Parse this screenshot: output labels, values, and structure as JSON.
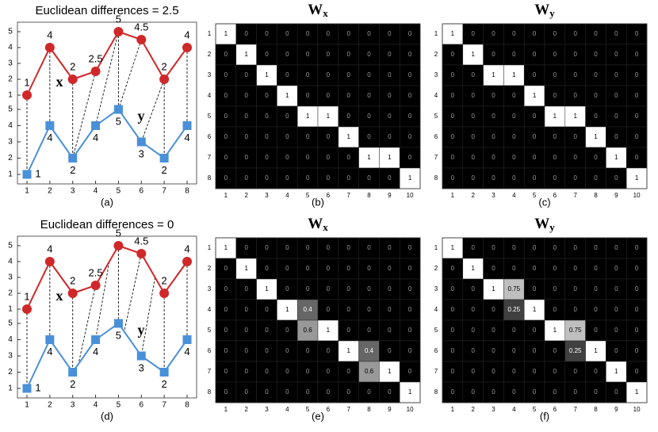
{
  "panels": [
    {
      "line": {
        "title": "Euclidean differences = 2.5",
        "caption": "(a)",
        "xticks": [
          1,
          2,
          3,
          4,
          5,
          6,
          7,
          8
        ],
        "yticks_top": [
          1,
          2,
          3,
          4,
          5
        ],
        "yticks_bottom": [
          1,
          2,
          3,
          4,
          5
        ],
        "series": [
          {
            "name": "x",
            "color": "#d0282a",
            "values": [
              1,
              4,
              2,
              2.5,
              5,
              4.5,
              2,
              4
            ]
          },
          {
            "name": "y",
            "color": "#4a90d9",
            "values": [
              1,
              4,
              2,
              4,
              5,
              3,
              2,
              4
            ]
          }
        ]
      },
      "matrices": [
        {
          "title": "W",
          "title_sub": "x",
          "caption": "(b)",
          "row_labels": [
            1,
            2,
            3,
            4,
            5,
            6,
            7,
            8
          ],
          "col_labels": [
            1,
            2,
            3,
            4,
            5,
            6,
            7,
            8,
            9,
            10
          ],
          "values": [
            [
              1,
              0,
              0,
              0,
              0,
              0,
              0,
              0,
              0,
              0
            ],
            [
              0,
              1,
              0,
              0,
              0,
              0,
              0,
              0,
              0,
              0
            ],
            [
              0,
              0,
              1,
              0,
              0,
              0,
              0,
              0,
              0,
              0
            ],
            [
              0,
              0,
              0,
              1,
              0,
              0,
              0,
              0,
              0,
              0
            ],
            [
              0,
              0,
              0,
              0,
              1,
              1,
              0,
              0,
              0,
              0
            ],
            [
              0,
              0,
              0,
              0,
              0,
              0,
              1,
              0,
              0,
              0
            ],
            [
              0,
              0,
              0,
              0,
              0,
              0,
              0,
              1,
              1,
              0
            ],
            [
              0,
              0,
              0,
              0,
              0,
              0,
              0,
              0,
              0,
              1
            ]
          ]
        },
        {
          "title": "W",
          "title_sub": "y",
          "caption": "(c)",
          "row_labels": [
            1,
            2,
            3,
            4,
            5,
            6,
            7,
            8
          ],
          "col_labels": [
            1,
            2,
            3,
            4,
            5,
            6,
            7,
            8,
            9,
            10
          ],
          "values": [
            [
              1,
              0,
              0,
              0,
              0,
              0,
              0,
              0,
              0,
              0
            ],
            [
              0,
              1,
              0,
              0,
              0,
              0,
              0,
              0,
              0,
              0
            ],
            [
              0,
              0,
              1,
              1,
              0,
              0,
              0,
              0,
              0,
              0
            ],
            [
              0,
              0,
              0,
              0,
              1,
              0,
              0,
              0,
              0,
              0
            ],
            [
              0,
              0,
              0,
              0,
              0,
              1,
              1,
              0,
              0,
              0
            ],
            [
              0,
              0,
              0,
              0,
              0,
              0,
              0,
              1,
              0,
              0
            ],
            [
              0,
              0,
              0,
              0,
              0,
              0,
              0,
              0,
              1,
              0
            ],
            [
              0,
              0,
              0,
              0,
              0,
              0,
              0,
              0,
              0,
              1
            ]
          ]
        }
      ]
    },
    {
      "line": {
        "title": "Euclidean differences = 0",
        "caption": "(d)",
        "xticks": [
          1,
          2,
          3,
          4,
          5,
          6,
          7,
          8
        ],
        "yticks_top": [
          1,
          2,
          3,
          4,
          5
        ],
        "yticks_bottom": [
          1,
          2,
          3,
          4,
          5
        ],
        "series": [
          {
            "name": "x",
            "color": "#d0282a",
            "values": [
              1,
              4,
              2,
              2.5,
              5,
              4.5,
              2,
              4
            ]
          },
          {
            "name": "y",
            "color": "#4a90d9",
            "values": [
              1,
              4,
              2,
              4,
              5,
              3,
              2,
              4
            ]
          }
        ]
      },
      "matrices": [
        {
          "title": "W",
          "title_sub": "x",
          "caption": "(e)",
          "row_labels": [
            1,
            2,
            3,
            4,
            5,
            6,
            7,
            8
          ],
          "col_labels": [
            1,
            2,
            3,
            4,
            5,
            6,
            7,
            8,
            9,
            10
          ],
          "values": [
            [
              1,
              0,
              0,
              0,
              0,
              0,
              0,
              0,
              0,
              0
            ],
            [
              0,
              1,
              0,
              0,
              0,
              0,
              0,
              0,
              0,
              0
            ],
            [
              0,
              0,
              1,
              0,
              0,
              0,
              0,
              0,
              0,
              0
            ],
            [
              0,
              0,
              0,
              1,
              0.4,
              0,
              0,
              0,
              0,
              0
            ],
            [
              0,
              0,
              0,
              0,
              0.6,
              1,
              0,
              0,
              0,
              0
            ],
            [
              0,
              0,
              0,
              0,
              0,
              0,
              1,
              0.4,
              0,
              0
            ],
            [
              0,
              0,
              0,
              0,
              0,
              0,
              0,
              0.6,
              1,
              0
            ],
            [
              0,
              0,
              0,
              0,
              0,
              0,
              0,
              0,
              0,
              1
            ]
          ]
        },
        {
          "title": "W",
          "title_sub": "y",
          "caption": "(f)",
          "row_labels": [
            1,
            2,
            3,
            4,
            5,
            6,
            7,
            8
          ],
          "col_labels": [
            1,
            2,
            3,
            4,
            5,
            6,
            7,
            8,
            9,
            10
          ],
          "values": [
            [
              1,
              0,
              0,
              0,
              0,
              0,
              0,
              0,
              0,
              0
            ],
            [
              0,
              1,
              0,
              0,
              0,
              0,
              0,
              0,
              0,
              0
            ],
            [
              0,
              0,
              1,
              0.75,
              0,
              0,
              0,
              0,
              0,
              0
            ],
            [
              0,
              0,
              0,
              0.25,
              1,
              0,
              0,
              0,
              0,
              0
            ],
            [
              0,
              0,
              0,
              0,
              0,
              1,
              0.75,
              0,
              0,
              0
            ],
            [
              0,
              0,
              0,
              0,
              0,
              0,
              0.25,
              1,
              0,
              0
            ],
            [
              0,
              0,
              0,
              0,
              0,
              0,
              0,
              0,
              1,
              0
            ],
            [
              0,
              0,
              0,
              0,
              0,
              0,
              0,
              0,
              0,
              1
            ]
          ]
        }
      ]
    }
  ]
}
